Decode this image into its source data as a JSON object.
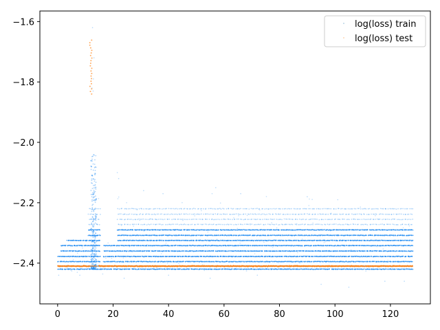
{
  "chart_data": {
    "type": "scatter",
    "title": "",
    "xlabel": "",
    "ylabel": "",
    "xlim": [
      -6.4,
      134.4
    ],
    "ylim": [
      -2.535,
      -1.565
    ],
    "xticks": [
      0,
      20,
      40,
      60,
      80,
      100,
      120
    ],
    "xtick_labels": [
      "0",
      "20",
      "40",
      "60",
      "80",
      "100",
      "120"
    ],
    "yticks": [
      -2.4,
      -2.2,
      -2.0,
      -1.8,
      -1.6
    ],
    "ytick_labels": [
      "−2.4",
      "−2.2",
      "−2.0",
      "−1.8",
      "−1.6"
    ],
    "grid": false,
    "legend_position": "upper right",
    "series": [
      {
        "name": "log(loss) train",
        "color": "#1f77b4",
        "marker_color": "#0a7ff0",
        "x_range": [
          0,
          128
        ],
        "bands": [
          -2.42,
          -2.41,
          -2.395,
          -2.378,
          -2.36,
          -2.342,
          -2.325,
          -2.308,
          -2.29,
          -2.272,
          -2.255,
          -2.238,
          -2.22
        ],
        "spike_x": [
          12,
          14
        ],
        "spike_y_max": -2.04
      },
      {
        "name": "log(loss) test",
        "color": "#ff7f0e",
        "x_range": [
          0,
          128
        ],
        "baseline_y": -2.41,
        "spike_x": [
          11.5,
          13
        ],
        "spike_y_range": [
          -1.84,
          -1.66
        ]
      }
    ]
  }
}
